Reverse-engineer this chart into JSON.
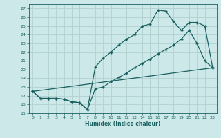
{
  "xlabel": "Humidex (Indice chaleur)",
  "xlim": [
    -0.5,
    23.5
  ],
  "ylim": [
    15,
    27.5
  ],
  "yticks": [
    15,
    16,
    17,
    18,
    19,
    20,
    21,
    22,
    23,
    24,
    25,
    26,
    27
  ],
  "xticks": [
    0,
    1,
    2,
    3,
    4,
    5,
    6,
    7,
    8,
    9,
    10,
    11,
    12,
    13,
    14,
    15,
    16,
    17,
    18,
    19,
    20,
    21,
    22,
    23
  ],
  "background_color": "#cce8e8",
  "line_color": "#1a6060",
  "grid_color": "#b0d0d0",
  "line1_x": [
    0,
    1,
    2,
    3,
    4,
    5,
    6,
    7,
    8,
    9,
    10,
    11,
    12,
    13,
    14,
    15,
    16,
    17,
    18,
    19,
    20,
    21,
    22,
    23
  ],
  "line1_y": [
    17.5,
    16.7,
    16.7,
    16.7,
    16.6,
    16.3,
    16.2,
    15.4,
    20.3,
    21.3,
    22.0,
    22.8,
    23.5,
    24.0,
    25.0,
    25.2,
    26.8,
    26.7,
    25.5,
    24.5,
    25.4,
    25.4,
    25.0,
    20.2
  ],
  "line2_x": [
    0,
    1,
    2,
    3,
    4,
    5,
    6,
    7,
    8,
    9,
    10,
    11,
    12,
    13,
    14,
    15,
    16,
    17,
    18,
    19,
    20,
    21,
    22,
    23
  ],
  "line2_y": [
    17.5,
    16.7,
    16.7,
    16.7,
    16.6,
    16.3,
    16.2,
    15.4,
    17.8,
    18.0,
    18.6,
    19.1,
    19.6,
    20.2,
    20.7,
    21.2,
    21.8,
    22.3,
    22.8,
    23.5,
    24.5,
    23.0,
    21.0,
    20.2
  ],
  "line3_x": [
    0,
    23
  ],
  "line3_y": [
    17.5,
    20.2
  ]
}
